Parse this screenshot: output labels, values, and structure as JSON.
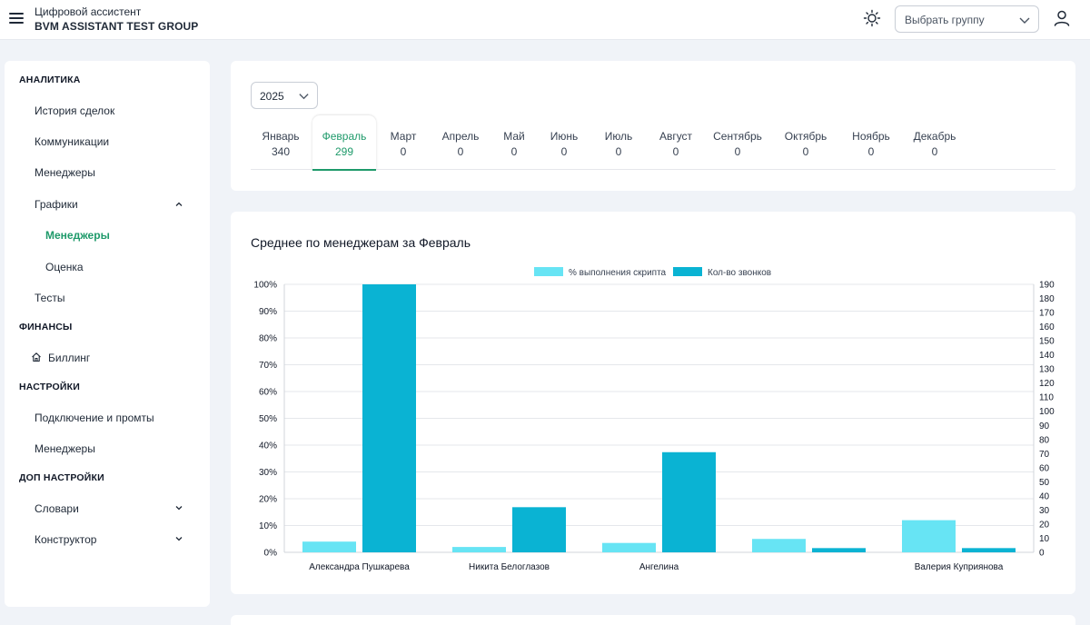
{
  "header": {
    "app_subtitle": "Цифровой ассистент",
    "app_title": "BVM ASSISTANT TEST GROUP",
    "group_select_placeholder": "Выбрать группу"
  },
  "sidebar": {
    "sections": [
      {
        "label": "АНАЛИТИКА"
      },
      {
        "label": "ФИНАНСЫ"
      },
      {
        "label": "НАСТРОЙКИ"
      },
      {
        "label": "ДОП НАСТРОЙКИ"
      }
    ],
    "items": [
      {
        "label": "История сделок"
      },
      {
        "label": "Коммуникации"
      },
      {
        "label": "Менеджеры"
      },
      {
        "label": "Графики"
      },
      {
        "label": "Менеджеры"
      },
      {
        "label": "Оценка"
      },
      {
        "label": "Тесты"
      },
      {
        "label": "Биллинг"
      },
      {
        "label": "Подключение и промты"
      },
      {
        "label": "Менеджеры"
      },
      {
        "label": "Словари"
      },
      {
        "label": "Конструктор"
      }
    ]
  },
  "filters": {
    "year": "2025",
    "months": [
      {
        "name": "Январь",
        "value": "340"
      },
      {
        "name": "Февраль",
        "value": "299"
      },
      {
        "name": "Март",
        "value": "0"
      },
      {
        "name": "Апрель",
        "value": "0"
      },
      {
        "name": "Май",
        "value": "0"
      },
      {
        "name": "Июнь",
        "value": "0"
      },
      {
        "name": "Июль",
        "value": "0"
      },
      {
        "name": "Август",
        "value": "0"
      },
      {
        "name": "Сентябрь",
        "value": "0"
      },
      {
        "name": "Октябрь",
        "value": "0"
      },
      {
        "name": "Ноябрь",
        "value": "0"
      },
      {
        "name": "Декабрь",
        "value": "0"
      }
    ],
    "active_month": "Февраль"
  },
  "colors": {
    "accent": "#1e9a6a",
    "series_script": "#67e4f4",
    "series_calls": "#0ab3d3"
  },
  "chart_data": {
    "type": "bar",
    "title": "Среднее по менеджерам за Февраль",
    "categories": [
      "Александра Пушкарева",
      "Никита Белоглазов",
      "Ангелина",
      "",
      "Валерия Куприянова"
    ],
    "series": [
      {
        "name": "% выполнения скрипта",
        "axis": "left",
        "values": [
          4,
          2,
          3.5,
          5,
          12
        ]
      },
      {
        "name": "Кол-во звонков",
        "axis": "right",
        "values": [
          190,
          32,
          71,
          3,
          3
        ]
      }
    ],
    "y_left": {
      "min": 0,
      "max": 100,
      "ticks": [
        "0%",
        "10%",
        "20%",
        "30%",
        "40%",
        "50%",
        "60%",
        "70%",
        "80%",
        "90%",
        "100%"
      ]
    },
    "y_right": {
      "min": 0,
      "max": 190,
      "ticks": [
        "0",
        "10",
        "20",
        "30",
        "40",
        "50",
        "60",
        "70",
        "80",
        "90",
        "100",
        "110",
        "120",
        "130",
        "140",
        "150",
        "160",
        "170",
        "180",
        "190"
      ]
    },
    "legend_position": "top-center",
    "grid": true
  }
}
